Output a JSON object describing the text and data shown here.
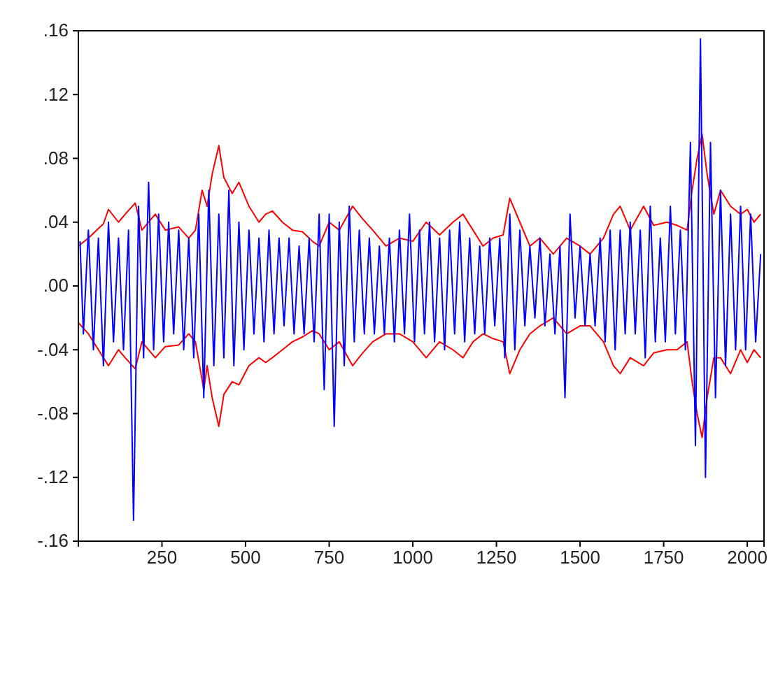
{
  "chart_data": {
    "type": "line",
    "xlim": [
      0,
      2050
    ],
    "xticks": [
      250,
      500,
      750,
      1000,
      1250,
      1500,
      1750,
      2000
    ],
    "ylim": [
      -0.16,
      0.16
    ],
    "yticks": [
      {
        "value": -0.16,
        "label": "-.16"
      },
      {
        "value": -0.12,
        "label": "-.12"
      },
      {
        "value": -0.08,
        "label": "-.08"
      },
      {
        "value": -0.04,
        "label": "-.04"
      },
      {
        "value": 0,
        "label": ".00"
      },
      {
        "value": 0.04,
        "label": ".04"
      },
      {
        "value": 0.08,
        "label": ".08"
      },
      {
        "value": 0.12,
        "label": ".12"
      },
      {
        "value": 0.16,
        "label": ".16"
      }
    ],
    "grid": false,
    "line_style": "solid",
    "marker": "none",
    "series": [
      {
        "color": "#ff0000",
        "x": [
          0,
          30,
          75,
          90,
          120,
          140,
          170,
          190,
          230,
          260,
          300,
          330,
          350,
          370,
          385,
          400,
          420,
          435,
          460,
          480,
          510,
          540,
          560,
          580,
          610,
          640,
          670,
          700,
          720,
          750,
          780,
          820,
          850,
          880,
          920,
          960,
          1000,
          1040,
          1080,
          1120,
          1150,
          1180,
          1210,
          1240,
          1270,
          1290,
          1320,
          1350,
          1380,
          1420,
          1460,
          1500,
          1530,
          1570,
          1600,
          1620,
          1650,
          1690,
          1720,
          1760,
          1790,
          1820,
          1835,
          1850,
          1865,
          1880,
          1900,
          1920,
          1950,
          1980,
          2000,
          2020,
          2040
        ],
        "values": [
          0.025,
          0.03,
          0.039,
          0.048,
          0.04,
          0.045,
          0.052,
          0.035,
          0.045,
          0.035,
          0.037,
          0.03,
          0.035,
          0.06,
          0.05,
          0.07,
          0.088,
          0.068,
          0.058,
          0.065,
          0.05,
          0.04,
          0.045,
          0.047,
          0.04,
          0.035,
          0.034,
          0.028,
          0.025,
          0.04,
          0.035,
          0.05,
          0.042,
          0.035,
          0.025,
          0.03,
          0.028,
          0.04,
          0.032,
          0.04,
          0.045,
          0.035,
          0.025,
          0.03,
          0.032,
          0.055,
          0.04,
          0.025,
          0.03,
          0.02,
          0.03,
          0.025,
          0.02,
          0.03,
          0.045,
          0.05,
          0.035,
          0.05,
          0.038,
          0.04,
          0.038,
          0.035,
          0.06,
          0.08,
          0.095,
          0.07,
          0.045,
          0.06,
          0.05,
          0.045,
          0.048,
          0.04,
          0.045
        ]
      },
      {
        "color": "#ff0000",
        "x": [
          0,
          30,
          75,
          90,
          120,
          140,
          170,
          190,
          230,
          260,
          300,
          330,
          350,
          375,
          385,
          400,
          420,
          435,
          460,
          480,
          510,
          540,
          560,
          580,
          610,
          640,
          670,
          700,
          720,
          750,
          780,
          820,
          850,
          880,
          920,
          960,
          1000,
          1040,
          1080,
          1120,
          1150,
          1180,
          1210,
          1240,
          1270,
          1290,
          1320,
          1350,
          1380,
          1420,
          1460,
          1500,
          1530,
          1570,
          1600,
          1620,
          1650,
          1690,
          1720,
          1760,
          1790,
          1820,
          1835,
          1850,
          1865,
          1880,
          1900,
          1920,
          1950,
          1980,
          2000,
          2020,
          2040
        ],
        "values": [
          -0.023,
          -0.03,
          -0.045,
          -0.05,
          -0.04,
          -0.045,
          -0.052,
          -0.035,
          -0.045,
          -0.038,
          -0.037,
          -0.03,
          -0.035,
          -0.065,
          -0.05,
          -0.07,
          -0.088,
          -0.068,
          -0.06,
          -0.062,
          -0.05,
          -0.045,
          -0.048,
          -0.045,
          -0.04,
          -0.035,
          -0.032,
          -0.028,
          -0.03,
          -0.04,
          -0.035,
          -0.05,
          -0.042,
          -0.035,
          -0.03,
          -0.03,
          -0.035,
          -0.045,
          -0.035,
          -0.04,
          -0.045,
          -0.035,
          -0.03,
          -0.033,
          -0.035,
          -0.055,
          -0.04,
          -0.03,
          -0.025,
          -0.02,
          -0.03,
          -0.025,
          -0.025,
          -0.035,
          -0.05,
          -0.055,
          -0.045,
          -0.05,
          -0.042,
          -0.04,
          -0.04,
          -0.035,
          -0.06,
          -0.08,
          -0.095,
          -0.07,
          -0.045,
          -0.045,
          -0.055,
          -0.04,
          -0.048,
          -0.04,
          -0.045
        ]
      },
      {
        "color": "#0000ff",
        "x": [
          5,
          15,
          30,
          45,
          60,
          75,
          90,
          105,
          120,
          135,
          150,
          165,
          180,
          195,
          210,
          225,
          240,
          255,
          270,
          285,
          300,
          315,
          330,
          345,
          360,
          375,
          390,
          405,
          420,
          435,
          450,
          465,
          480,
          495,
          510,
          525,
          540,
          555,
          570,
          585,
          600,
          615,
          630,
          645,
          660,
          675,
          690,
          705,
          720,
          735,
          750,
          765,
          780,
          795,
          810,
          825,
          840,
          855,
          870,
          885,
          900,
          915,
          930,
          945,
          960,
          975,
          990,
          1005,
          1020,
          1035,
          1050,
          1065,
          1080,
          1095,
          1110,
          1125,
          1140,
          1155,
          1170,
          1185,
          1200,
          1215,
          1230,
          1245,
          1260,
          1275,
          1290,
          1305,
          1320,
          1335,
          1350,
          1365,
          1380,
          1395,
          1410,
          1425,
          1440,
          1455,
          1470,
          1485,
          1500,
          1515,
          1530,
          1545,
          1560,
          1575,
          1590,
          1605,
          1620,
          1635,
          1650,
          1665,
          1680,
          1695,
          1710,
          1725,
          1740,
          1755,
          1770,
          1785,
          1800,
          1815,
          1830,
          1845,
          1860,
          1875,
          1890,
          1905,
          1920,
          1935,
          1950,
          1965,
          1980,
          1995,
          2010,
          2025,
          2040
        ],
        "values": [
          0.028,
          -0.03,
          0.035,
          -0.04,
          0.03,
          -0.05,
          0.04,
          -0.035,
          0.03,
          -0.04,
          0.035,
          -0.147,
          0.05,
          -0.045,
          0.065,
          -0.04,
          0.045,
          -0.035,
          0.04,
          -0.03,
          0.035,
          -0.04,
          0.03,
          -0.045,
          0.045,
          -0.07,
          0.06,
          -0.05,
          0.045,
          -0.045,
          0.06,
          -0.05,
          0.04,
          -0.04,
          0.035,
          -0.03,
          0.03,
          -0.035,
          0.035,
          -0.03,
          0.03,
          -0.025,
          0.03,
          -0.03,
          0.025,
          -0.03,
          0.03,
          -0.035,
          0.045,
          -0.065,
          0.045,
          -0.088,
          0.04,
          -0.05,
          0.05,
          -0.035,
          0.035,
          -0.03,
          0.03,
          -0.03,
          0.025,
          -0.03,
          0.03,
          -0.035,
          0.035,
          -0.03,
          0.045,
          -0.035,
          0.035,
          -0.03,
          0.04,
          -0.035,
          0.03,
          -0.04,
          0.035,
          -0.03,
          0.04,
          -0.035,
          0.03,
          -0.03,
          0.025,
          -0.03,
          0.03,
          -0.025,
          0.03,
          -0.045,
          0.045,
          -0.04,
          0.035,
          -0.025,
          0.025,
          -0.02,
          0.03,
          -0.025,
          0.02,
          -0.03,
          0.025,
          -0.07,
          0.045,
          -0.02,
          0.025,
          -0.025,
          0.02,
          -0.025,
          0.03,
          -0.035,
          0.035,
          -0.04,
          0.035,
          -0.03,
          0.04,
          -0.03,
          0.035,
          -0.045,
          0.05,
          -0.035,
          0.03,
          -0.035,
          0.05,
          -0.03,
          0.035,
          -0.04,
          0.09,
          -0.1,
          0.155,
          -0.12,
          0.09,
          -0.07,
          0.06,
          -0.05,
          0.045,
          -0.04,
          0.05,
          -0.04,
          0.045,
          -0.035,
          0.02
        ]
      }
    ]
  }
}
